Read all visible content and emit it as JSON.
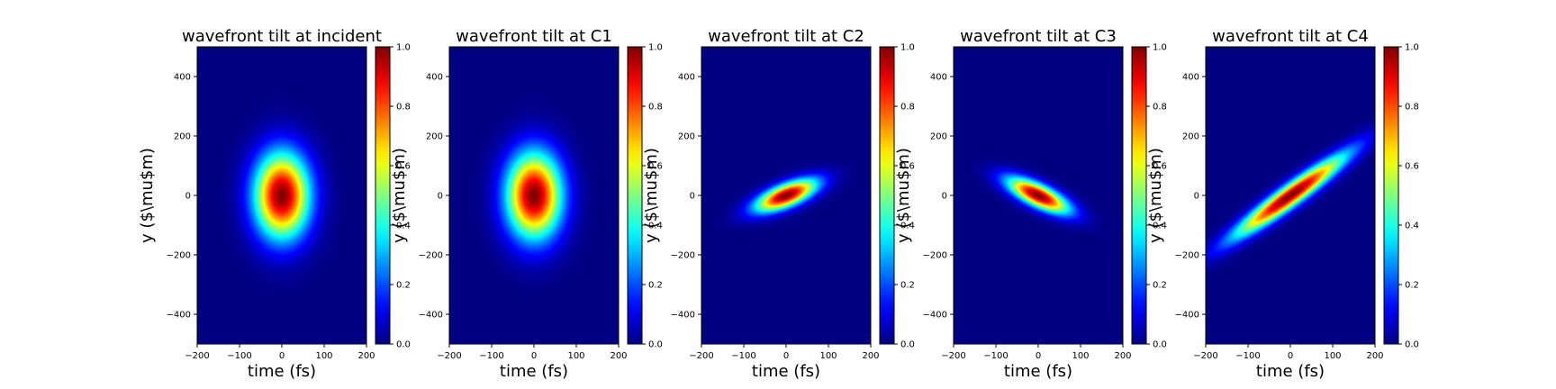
{
  "chart_data": [
    {
      "type": "heatmap",
      "title": "wavefront tilt at incident",
      "xlabel": "time (fs)",
      "ylabel": "y ($\\mu$m)",
      "x_ticks": [
        -200,
        -100,
        0,
        100,
        200
      ],
      "y_ticks": [
        -400,
        -200,
        0,
        200,
        400
      ],
      "xlim": [
        -200,
        200
      ],
      "ylim": [
        -500,
        500
      ],
      "colorbar": {
        "ticks": [
          "0.0",
          "0.2",
          "0.4",
          "0.6",
          "0.8",
          "1.0"
        ],
        "range": [
          0,
          1
        ],
        "colormap": "jet"
      },
      "pulse": {
        "center_t": 0,
        "center_y": 0,
        "sigma_t": 45,
        "sigma_y": 100,
        "tilt_um_per_fs": 0
      }
    },
    {
      "type": "heatmap",
      "title": "wavefront tilt at C1",
      "xlabel": "time (fs)",
      "ylabel": "y ($\\mu$m)",
      "x_ticks": [
        -200,
        -100,
        0,
        100,
        200
      ],
      "y_ticks": [
        -400,
        -200,
        0,
        200,
        400
      ],
      "xlim": [
        -200,
        200
      ],
      "ylim": [
        -500,
        500
      ],
      "colorbar": {
        "ticks": [
          "0.0",
          "0.2",
          "0.4",
          "0.6",
          "0.8",
          "1.0"
        ],
        "range": [
          0,
          1
        ],
        "colormap": "jet"
      },
      "pulse": {
        "center_t": 0,
        "center_y": 0,
        "sigma_t": 45,
        "sigma_y": 100,
        "tilt_um_per_fs": 0
      }
    },
    {
      "type": "heatmap",
      "title": "wavefront tilt at C2",
      "xlabel": "time (fs)",
      "ylabel": "y ($\\mu$m)",
      "x_ticks": [
        -200,
        -100,
        0,
        100,
        200
      ],
      "y_ticks": [
        -400,
        -200,
        0,
        200,
        400
      ],
      "xlim": [
        -200,
        200
      ],
      "ylim": [
        -500,
        500
      ],
      "colorbar": {
        "ticks": [
          "0.0",
          "0.2",
          "0.4",
          "0.6",
          "0.8",
          "1.0"
        ],
        "range": [
          0,
          1
        ],
        "colormap": "jet"
      },
      "pulse": {
        "center_t": 0,
        "center_y": 0,
        "sigma_t": 50,
        "sigma_y": 28,
        "tilt_um_per_fs": 0.5
      }
    },
    {
      "type": "heatmap",
      "title": "wavefront tilt at C3",
      "xlabel": "time (fs)",
      "ylabel": "y ($\\mu$m)",
      "x_ticks": [
        -200,
        -100,
        0,
        100,
        200
      ],
      "y_ticks": [
        -400,
        -200,
        0,
        200,
        400
      ],
      "xlim": [
        -200,
        200
      ],
      "ylim": [
        -500,
        500
      ],
      "colorbar": {
        "ticks": [
          "0.0",
          "0.2",
          "0.4",
          "0.6",
          "0.8",
          "1.0"
        ],
        "range": [
          0,
          1
        ],
        "colormap": "jet"
      },
      "pulse": {
        "center_t": 0,
        "center_y": 0,
        "sigma_t": 50,
        "sigma_y": 28,
        "tilt_um_per_fs": -0.6
      }
    },
    {
      "type": "heatmap",
      "title": "wavefront tilt at C4",
      "xlabel": "time (fs)",
      "ylabel": "y ($\\mu$m)",
      "x_ticks": [
        -200,
        -100,
        0,
        100,
        200
      ],
      "y_ticks": [
        -400,
        -200,
        0,
        200,
        400
      ],
      "xlim": [
        -200,
        200
      ],
      "ylim": [
        -500,
        500
      ],
      "colorbar": {
        "ticks": [
          "0.0",
          "0.2",
          "0.4",
          "0.6",
          "0.8",
          "1.0"
        ],
        "range": [
          0,
          1
        ],
        "colormap": "jet"
      },
      "pulse": {
        "center_t": 0,
        "center_y": 0,
        "sigma_t": 90,
        "sigma_y": 30,
        "tilt_um_per_fs": 1.0
      }
    }
  ]
}
